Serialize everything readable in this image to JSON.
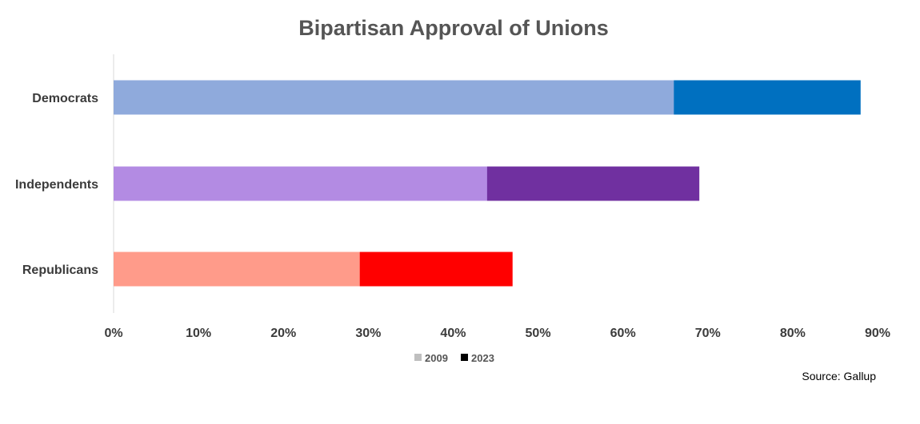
{
  "chart_data": {
    "type": "bar",
    "orientation": "horizontal",
    "stacked": false,
    "title": "Bipartisan Approval of Unions",
    "xlabel": "",
    "ylabel": "",
    "categories": [
      "Democrats",
      "Independents",
      "Republicans"
    ],
    "series": [
      {
        "name": "2009",
        "values": [
          66,
          44,
          29
        ],
        "colors": [
          "#8faadc",
          "#b38be3",
          "#ff9b8a"
        ],
        "legend_color": "#bfbfbf"
      },
      {
        "name": "2023",
        "values": [
          88,
          69,
          47
        ],
        "colors": [
          "#0070c0",
          "#7030a0",
          "#ff0000"
        ],
        "legend_color": "#000000"
      }
    ],
    "xlim": [
      0,
      90
    ],
    "x_ticks": [
      0,
      10,
      20,
      30,
      40,
      50,
      60,
      70,
      80,
      90
    ],
    "x_tick_labels": [
      "0%",
      "10%",
      "20%",
      "30%",
      "40%",
      "50%",
      "60%",
      "70%",
      "80%",
      "90%"
    ],
    "grid": false,
    "legend_position": "bottom",
    "annotations": [
      "Source: Gallup"
    ]
  }
}
